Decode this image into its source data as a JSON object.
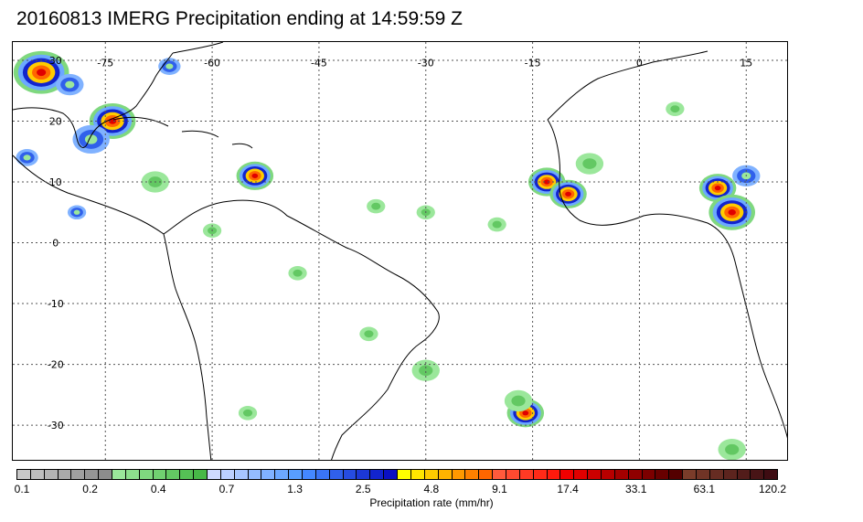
{
  "title": "20160813 IMERG Precipitation ending at 14:59:59 Z",
  "map": {
    "lon_labels": [
      "-75",
      "-60",
      "-45",
      "-30",
      "-15",
      "0",
      "15"
    ],
    "lon_values": [
      -75,
      -60,
      -45,
      -30,
      -15,
      0,
      15
    ],
    "lat_labels": [
      "30",
      "20",
      "10",
      "0",
      "-10",
      "-20",
      "-30"
    ],
    "lat_values": [
      30,
      20,
      10,
      0,
      -10,
      -20,
      -30
    ],
    "extent": {
      "lon_min": -88,
      "lon_max": 21,
      "lat_min": -36,
      "lat_max": 33
    }
  },
  "colorbar": {
    "label": "Precipitation rate (mm/hr)",
    "tick_labels": [
      "0.1",
      "0.2",
      "0.4",
      "0.7",
      "1.3",
      "2.5",
      "4.8",
      "9.1",
      "17.4",
      "33.1",
      "63.1",
      "120.2"
    ],
    "colors": [
      "#c8c8c8",
      "#bebebe",
      "#b4b4b4",
      "#aaaaaa",
      "#a0a0a0",
      "#969696",
      "#8c8c8c",
      "#9be79b",
      "#8de08d",
      "#7fd87f",
      "#71d071",
      "#63c863",
      "#55c055",
      "#47b847",
      "#cfd9ff",
      "#bcd0ff",
      "#a8c6ff",
      "#94bcff",
      "#80b2ff",
      "#6ca8ff",
      "#589eff",
      "#4488ff",
      "#3a74f5",
      "#3060eb",
      "#264ce1",
      "#1c38d7",
      "#1224cd",
      "#0a10c3",
      "#ffff00",
      "#ffe600",
      "#ffcc00",
      "#ffb300",
      "#ff9900",
      "#ff8000",
      "#ff6600",
      "#ff5a3c",
      "#ff4a30",
      "#ff3a24",
      "#ff2a18",
      "#ff1a0c",
      "#f00000",
      "#e00000",
      "#cc0000",
      "#b80000",
      "#a40000",
      "#900000",
      "#7c0000",
      "#680000",
      "#540000",
      "#7a3c2a",
      "#703426",
      "#662c22",
      "#5c241e",
      "#521c1a",
      "#481416",
      "#3e0c12"
    ]
  },
  "precip_cells": [
    {
      "lon": -84,
      "lat": 28,
      "r": 3,
      "level": "high"
    },
    {
      "lon": -80,
      "lat": 26,
      "r": 1.5,
      "level": "med"
    },
    {
      "lon": -74,
      "lat": 20,
      "r": 2.5,
      "level": "high"
    },
    {
      "lon": -77,
      "lat": 17,
      "r": 2,
      "level": "med"
    },
    {
      "lon": -54,
      "lat": 11,
      "r": 2,
      "level": "high"
    },
    {
      "lon": -68,
      "lat": 10,
      "r": 1.5,
      "level": "low"
    },
    {
      "lon": -79,
      "lat": 5,
      "r": 1,
      "level": "med"
    },
    {
      "lon": -13,
      "lat": 10,
      "r": 2,
      "level": "high"
    },
    {
      "lon": -10,
      "lat": 8,
      "r": 2,
      "level": "high"
    },
    {
      "lon": -7,
      "lat": 13,
      "r": 1.5,
      "level": "low"
    },
    {
      "lon": 11,
      "lat": 9,
      "r": 2,
      "level": "high"
    },
    {
      "lon": 13,
      "lat": 5,
      "r": 2.5,
      "level": "high"
    },
    {
      "lon": 15,
      "lat": 11,
      "r": 1.5,
      "level": "med"
    },
    {
      "lon": -16,
      "lat": -28,
      "r": 2,
      "level": "high"
    },
    {
      "lon": -17,
      "lat": -26,
      "r": 1.5,
      "level": "low"
    },
    {
      "lon": -30,
      "lat": -21,
      "r": 1.5,
      "level": "low"
    },
    {
      "lon": -38,
      "lat": -15,
      "r": 1,
      "level": "low"
    },
    {
      "lon": 13,
      "lat": -34,
      "r": 1.5,
      "level": "low"
    },
    {
      "lon": -20,
      "lat": 3,
      "r": 1,
      "level": "low"
    },
    {
      "lon": -30,
      "lat": 5,
      "r": 1,
      "level": "low"
    },
    {
      "lon": -37,
      "lat": 6,
      "r": 1,
      "level": "low"
    },
    {
      "lon": -60,
      "lat": 2,
      "r": 1,
      "level": "low"
    },
    {
      "lon": -48,
      "lat": -5,
      "r": 1,
      "level": "low"
    },
    {
      "lon": -66,
      "lat": 29,
      "r": 1.2,
      "level": "med"
    },
    {
      "lon": 5,
      "lat": 22,
      "r": 1,
      "level": "low"
    },
    {
      "lon": -86,
      "lat": 14,
      "r": 1.2,
      "level": "med"
    },
    {
      "lon": -55,
      "lat": -28,
      "r": 1,
      "level": "low"
    }
  ]
}
